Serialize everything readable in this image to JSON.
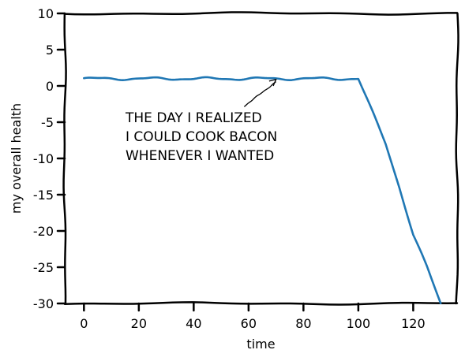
{
  "chart_data": {
    "type": "line",
    "title": "",
    "xlabel": "time",
    "ylabel": "my overall health",
    "xlim": [
      -7,
      136
    ],
    "ylim": [
      -30,
      10
    ],
    "xticks": [
      0,
      20,
      40,
      60,
      80,
      100,
      120
    ],
    "yticks": [
      10,
      5,
      0,
      -5,
      -10,
      -15,
      -20,
      -25,
      -30
    ],
    "grid": false,
    "style": "xkcd",
    "series": [
      {
        "color": "#1f77b4",
        "x": [
          0,
          10,
          20,
          30,
          40,
          50,
          60,
          70,
          80,
          90,
          100,
          105,
          110,
          115,
          120,
          125,
          130
        ],
        "y": [
          1,
          1,
          1,
          1,
          1,
          1,
          1,
          1,
          1,
          1,
          1,
          -3.5,
          -8,
          -14,
          -20.5,
          -25,
          -30
        ]
      }
    ],
    "annotation": {
      "lines": [
        "THE DAY I REALIZED",
        "I COULD COOK BACON",
        "WHENEVER I WANTED"
      ],
      "target": [
        70,
        1
      ]
    }
  }
}
